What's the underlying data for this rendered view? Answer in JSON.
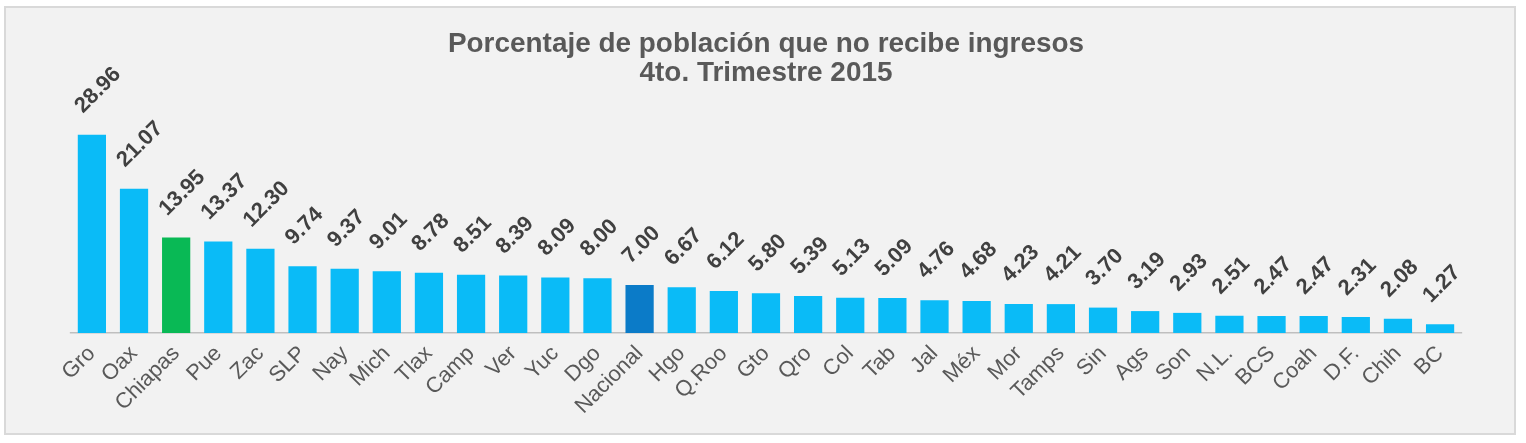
{
  "chart_data": {
    "type": "bar",
    "title": "Porcentaje de población que no recibe ingresos",
    "subtitle": "4to. Trimestre 2015",
    "categories": [
      "Gro",
      "Oax",
      "Chiapas",
      "Pue",
      "Zac",
      "SLP",
      "Nay",
      "Mich",
      "Tlax",
      "Camp",
      "Ver",
      "Yuc",
      "Dgo",
      "Nacional",
      "Hgo",
      "Q.Roo",
      "Gto",
      "Qro",
      "Col",
      "Tab",
      "Jal",
      "Méx",
      "Mor",
      "Tamps",
      "Sin",
      "Ags",
      "Son",
      "N.L.",
      "BCS",
      "Coah",
      "D.F.",
      "Chih",
      "BC"
    ],
    "values": [
      28.96,
      21.07,
      13.95,
      13.37,
      12.3,
      9.74,
      9.37,
      9.01,
      8.78,
      8.51,
      8.39,
      8.09,
      8.0,
      7.0,
      6.67,
      6.12,
      5.8,
      5.39,
      5.13,
      5.09,
      4.76,
      4.68,
      4.23,
      4.21,
      3.7,
      3.19,
      2.93,
      2.51,
      2.47,
      2.47,
      2.31,
      2.08,
      1.27
    ],
    "value_labels": [
      "28.96",
      "21.07",
      "13.95",
      "13.37",
      "12.30",
      "9.74",
      "9.37",
      "9.01",
      "8.78",
      "8.51",
      "8.39",
      "8.09",
      "8.00",
      "7.00",
      "6.67",
      "6.12",
      "5.80",
      "5.39",
      "5.13",
      "5.09",
      "4.76",
      "4.68",
      "4.23",
      "4.21",
      "3.70",
      "3.19",
      "2.93",
      "2.51",
      "2.47",
      "2.47",
      "2.31",
      "2.08",
      "1.27"
    ],
    "colors": [
      "#0abbf7",
      "#0abbf7",
      "#09b955",
      "#0abbf7",
      "#0abbf7",
      "#0abbf7",
      "#0abbf7",
      "#0abbf7",
      "#0abbf7",
      "#0abbf7",
      "#0abbf7",
      "#0abbf7",
      "#0abbf7",
      "#0b7bc8",
      "#0abbf7",
      "#0abbf7",
      "#0abbf7",
      "#0abbf7",
      "#0abbf7",
      "#0abbf7",
      "#0abbf7",
      "#0abbf7",
      "#0abbf7",
      "#0abbf7",
      "#0abbf7",
      "#0abbf7",
      "#0abbf7",
      "#0abbf7",
      "#0abbf7",
      "#0abbf7",
      "#0abbf7",
      "#0abbf7",
      "#0abbf7"
    ],
    "tick_labels": "x"
  }
}
